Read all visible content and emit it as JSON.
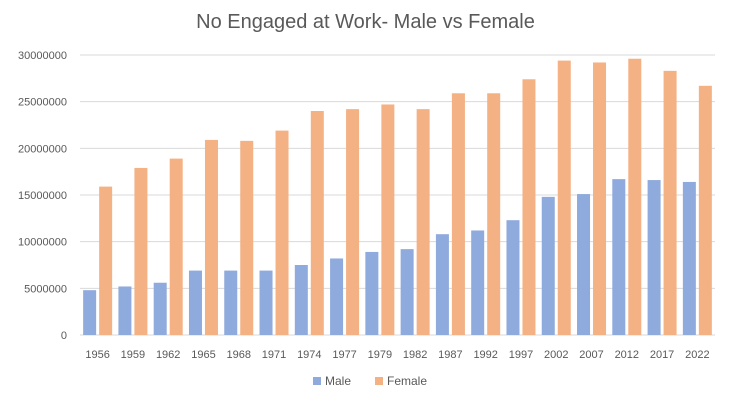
{
  "chart_data": {
    "type": "bar",
    "title": "No Engaged at Work- Male vs Female",
    "xlabel": "",
    "ylabel": "",
    "ylim": [
      0,
      30000000
    ],
    "yticks": [
      0,
      5000000,
      10000000,
      15000000,
      20000000,
      25000000,
      30000000
    ],
    "grid": true,
    "legend_position": "bottom",
    "categories": [
      "1956",
      "1959",
      "1962",
      "1965",
      "1968",
      "1971",
      "1974",
      "1977",
      "1979",
      "1982",
      "1987",
      "1992",
      "1997",
      "2002",
      "2007",
      "2012",
      "2017",
      "2022"
    ],
    "series": [
      {
        "name": "Male",
        "color": "#8faadc",
        "values": [
          4800000,
          5200000,
          5600000,
          6900000,
          6900000,
          6900000,
          7500000,
          8200000,
          8900000,
          9200000,
          10800000,
          11200000,
          12300000,
          14800000,
          15100000,
          16700000,
          16600000,
          16400000
        ]
      },
      {
        "name": "Female",
        "color": "#f4b183",
        "values": [
          15900000,
          17900000,
          18900000,
          20900000,
          20800000,
          21900000,
          24000000,
          24200000,
          24700000,
          24200000,
          25900000,
          25900000,
          27400000,
          29400000,
          29200000,
          29600000,
          28300000,
          26700000
        ]
      }
    ]
  }
}
